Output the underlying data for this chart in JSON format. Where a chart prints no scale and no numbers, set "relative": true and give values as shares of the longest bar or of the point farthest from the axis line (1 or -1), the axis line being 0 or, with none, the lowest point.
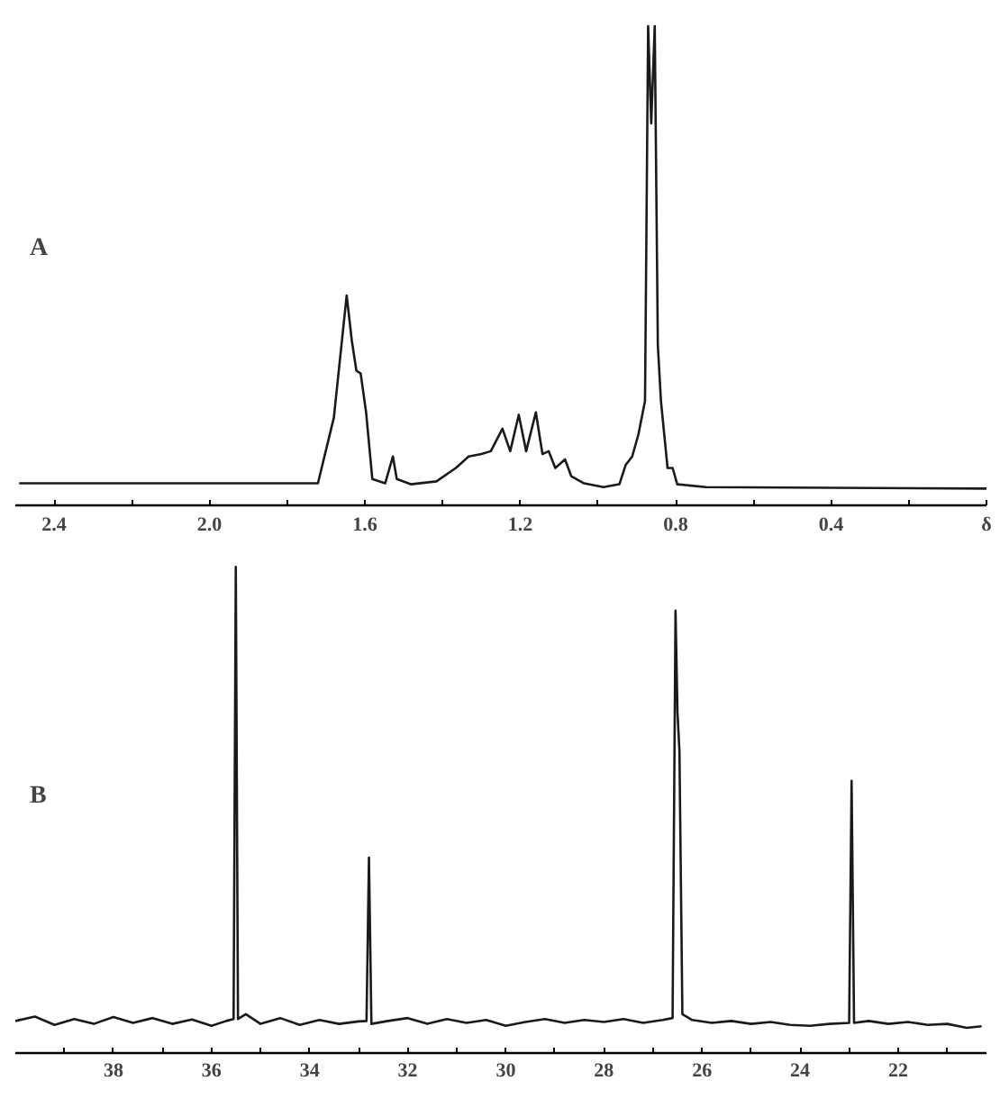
{
  "chart_data": [
    {
      "type": "line",
      "title": "A",
      "relative": true,
      "grid": false,
      "xlim": [
        2.5,
        0.0
      ],
      "xticks": [
        2.4,
        {
          "value": 2.2,
          "label": null
        },
        {
          "value": 2.0,
          "label": "2.0"
        },
        {
          "value": 1.8,
          "label": null
        },
        1.6,
        {
          "value": 1.4,
          "label": null
        },
        1.2,
        {
          "value": 1.0,
          "label": null
        },
        0.8,
        {
          "value": 0.6,
          "label": null
        },
        0.4,
        {
          "value": 0.2,
          "label": null
        },
        {
          "value": 0.0,
          "label": "δ"
        }
      ],
      "series": [
        {
          "color": "#1a1a1a",
          "x": [
            2.49,
            1.721,
            1.68,
            1.647,
            1.634,
            1.622,
            1.611,
            1.597,
            1.581,
            1.548,
            1.528,
            1.518,
            1.482,
            1.416,
            1.366,
            1.333,
            1.3,
            1.276,
            1.246,
            1.226,
            1.204,
            1.185,
            1.16,
            1.143,
            1.127,
            1.11,
            1.085,
            1.069,
            1.036,
            0.986,
            0.945,
            0.929,
            0.912,
            0.896,
            0.879,
            0.871,
            0.863,
            0.854,
            0.846,
            0.838,
            0.821,
            0.808,
            0.796,
            0.722,
            0.0
          ],
          "values": [
            0.046,
            0.046,
            0.183,
            0.438,
            0.345,
            0.281,
            0.275,
            0.194,
            0.055,
            0.046,
            0.102,
            0.055,
            0.044,
            0.05,
            0.078,
            0.102,
            0.107,
            0.113,
            0.16,
            0.113,
            0.189,
            0.113,
            0.194,
            0.107,
            0.113,
            0.078,
            0.096,
            0.061,
            0.046,
            0.038,
            0.044,
            0.084,
            0.102,
            0.148,
            0.218,
            1.0,
            0.797,
            1.0,
            0.334,
            0.218,
            0.078,
            0.078,
            0.044,
            0.038,
            0.035
          ]
        }
      ]
    },
    {
      "type": "line",
      "title": "B",
      "relative": true,
      "grid": false,
      "xlim": [
        40.0,
        20.2
      ],
      "xticks": [
        {
          "value": 39,
          "label": null
        },
        38,
        {
          "value": 37,
          "label": null
        },
        36,
        {
          "value": 35,
          "label": null
        },
        34,
        {
          "value": 33,
          "label": null
        },
        32,
        {
          "value": 31,
          "label": null
        },
        30,
        {
          "value": 29,
          "label": null
        },
        28,
        {
          "value": 27,
          "label": null
        },
        26,
        {
          "value": 25,
          "label": null
        },
        24,
        {
          "value": 23,
          "label": null
        },
        22,
        {
          "value": 21,
          "label": null
        }
      ],
      "series": [
        {
          "color": "#1a1a1a",
          "x": [
            40.0,
            39.6,
            39.2,
            38.8,
            38.4,
            38.0,
            37.6,
            37.2,
            36.8,
            36.4,
            36.0,
            35.7,
            35.55,
            35.505,
            35.46,
            35.3,
            35.0,
            34.6,
            34.2,
            33.8,
            33.4,
            33.0,
            32.84,
            32.79,
            32.74,
            32.4,
            32.0,
            31.6,
            31.2,
            30.8,
            30.4,
            30.0,
            29.6,
            29.2,
            28.8,
            28.4,
            28.0,
            27.6,
            27.2,
            26.8,
            26.6,
            26.54,
            26.5,
            26.46,
            26.4,
            26.2,
            25.8,
            25.4,
            25.0,
            24.6,
            24.2,
            23.8,
            23.4,
            23.0,
            22.95,
            22.9,
            22.6,
            22.2,
            21.8,
            21.4,
            21.0,
            20.6,
            20.3
          ],
          "values": [
            0.066,
            0.075,
            0.058,
            0.07,
            0.06,
            0.074,
            0.062,
            0.072,
            0.06,
            0.069,
            0.056,
            0.066,
            0.07,
            1.0,
            0.07,
            0.08,
            0.06,
            0.072,
            0.058,
            0.068,
            0.06,
            0.065,
            0.066,
            0.402,
            0.06,
            0.066,
            0.072,
            0.06,
            0.07,
            0.062,
            0.068,
            0.056,
            0.064,
            0.07,
            0.062,
            0.068,
            0.064,
            0.07,
            0.062,
            0.068,
            0.072,
            0.91,
            0.7,
            0.621,
            0.08,
            0.068,
            0.062,
            0.066,
            0.06,
            0.064,
            0.058,
            0.056,
            0.06,
            0.062,
            0.56,
            0.062,
            0.066,
            0.06,
            0.064,
            0.058,
            0.06,
            0.052,
            0.055
          ]
        }
      ]
    }
  ]
}
